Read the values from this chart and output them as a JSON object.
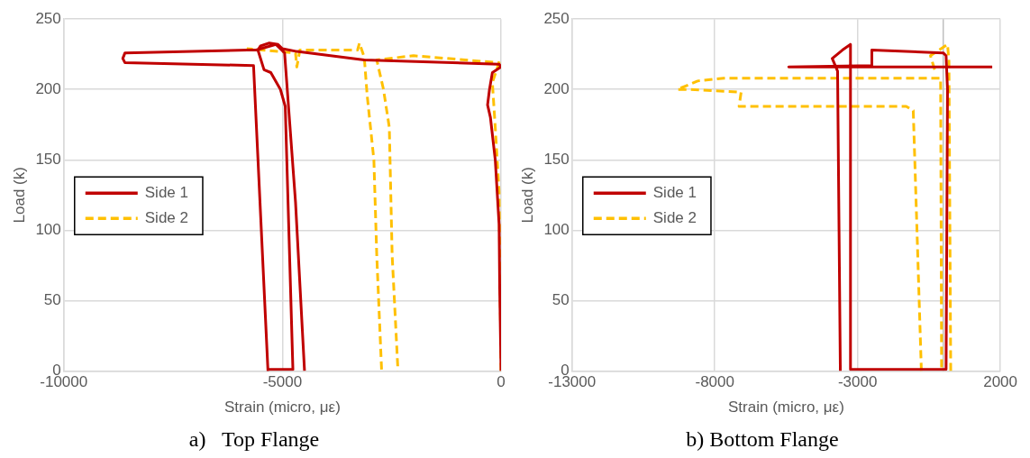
{
  "chart_data": [
    {
      "type": "line",
      "title": "a)   Top Flange",
      "xlabel": "Strain (micro, με)",
      "ylabel": "Load (k)",
      "xlim": [
        -10000,
        0
      ],
      "xticks": [
        -10000,
        -5000,
        0
      ],
      "ylim": [
        0,
        250
      ],
      "yticks": [
        0,
        50,
        100,
        150,
        200,
        250
      ],
      "grid": true,
      "legend": "left",
      "marker": "none",
      "series": [
        {
          "name": "Side 1",
          "color": "#c00000",
          "line_style": "solid",
          "x": [
            0,
            -30,
            -44,
            -132,
            -242,
            -308,
            -264,
            -198,
            0,
            -44,
            -3128,
            -4670,
            -5000,
            -5100,
            -5300,
            -5500,
            -5560,
            -5420,
            -5265,
            -5045,
            -4935,
            -4760,
            -5330,
            -5330,
            -5660,
            -8600,
            -8650,
            -8600,
            -5800,
            -5600,
            -5150,
            -4950,
            -4700,
            -4494
          ],
          "values": [
            0,
            58,
            104,
            150,
            180,
            189,
            200,
            212,
            216,
            218,
            221,
            227,
            229,
            232,
            233,
            231,
            228,
            214,
            212,
            200,
            188,
            1,
            1,
            0,
            217,
            219,
            222,
            226,
            228,
            228,
            232,
            226,
            120,
            0
          ]
        },
        {
          "name": "Side 2",
          "color": "#ffc000",
          "line_style": "dashed",
          "x": [
            0,
            -44,
            -132,
            -198,
            -44,
            -2000,
            -2842,
            -2688,
            -2555,
            -2490,
            -2357,
            -2500,
            -2732,
            -2842,
            -2908,
            -3062,
            -3128,
            -3238,
            -3282,
            -4600,
            -4670,
            -4700,
            -5816
          ],
          "values": [
            0,
            127,
            173,
            205,
            219,
            224,
            221,
            200,
            173,
            82,
            0,
            null,
            1,
            82,
            150,
            196,
            223,
            233,
            228,
            228,
            216,
            226,
            229
          ]
        }
      ]
    },
    {
      "type": "line",
      "title": "b) Bottom Flange",
      "xlabel": "Strain (micro, με)",
      "ylabel": "Load (k)",
      "xlim": [
        -13000,
        2000
      ],
      "xticks": [
        -13000,
        -8000,
        -3000,
        2000
      ],
      "ylim": [
        0,
        250
      ],
      "yticks": [
        0,
        50,
        100,
        150,
        200,
        250
      ],
      "grid": true,
      "legend": "left",
      "marker": "none",
      "ref_lines": [
        {
          "axis": "x",
          "value": 0,
          "color": "#bfbfbf"
        }
      ],
      "series": [
        {
          "name": "Side 1",
          "color": "#c00000",
          "line_style": "solid",
          "x": [
            -3603,
            -3700,
            -3887,
            -3532,
            -3248,
            -3248,
            0,
            100,
            150,
            100,
            0,
            -2500,
            -2500,
            -5411,
            1716
          ],
          "values": [
            0,
            213,
            222,
            228,
            232,
            1,
            1,
            1,
            200,
            224,
            226,
            228,
            217,
            216,
            216
          ]
        },
        {
          "name": "Side 2",
          "color": "#ffc000",
          "line_style": "dashed",
          "x": [
            -766,
            -1050,
            -1298,
            -7149,
            -7078,
            -8851,
            -9312,
            -8603,
            -7681,
            -92,
            -57,
            0,
            262,
            200,
            150,
            -447,
            -300
          ],
          "values": [
            0,
            185,
            188,
            188,
            198,
            200,
            200,
            206,
            208,
            208,
            0,
            null,
            0,
            220,
            232,
            224,
            214
          ]
        }
      ]
    }
  ]
}
